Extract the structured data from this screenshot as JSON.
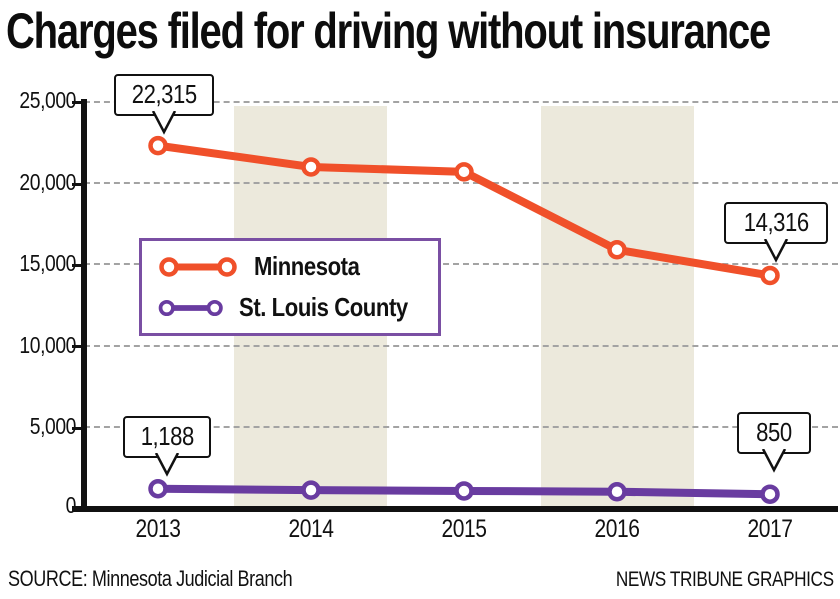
{
  "title": "Charges filed for driving without insurance",
  "source": "SOURCE: Minnesota Judicial Branch",
  "credit": "NEWS TRIBUNE GRAPHICS",
  "colors": {
    "minnesota": "#f0502a",
    "st_louis_county": "#693ca0",
    "band": "#ece9dc",
    "grid": "#a3a3a3",
    "axis": "#111111",
    "legend_border": "#7a4fa3",
    "callout_border": "#111111"
  },
  "legend": {
    "items": [
      {
        "label": "Minnesota"
      },
      {
        "label": "St. Louis County"
      }
    ]
  },
  "chart_data": {
    "type": "line",
    "title": "Charges filed for driving without insurance",
    "categories": [
      "2013",
      "2014",
      "2015",
      "2016",
      "2017"
    ],
    "series": [
      {
        "name": "Minnesota",
        "color_key": "minnesota",
        "values": [
          22315,
          21000,
          20700,
          15900,
          14316
        ]
      },
      {
        "name": "St. Louis County",
        "color_key": "st_louis_county",
        "values": [
          1188,
          1100,
          1050,
          1000,
          850
        ]
      }
    ],
    "y_ticks": [
      "25,000",
      "20,000",
      "15,000",
      "10,000",
      "5,000",
      "0"
    ],
    "y_tick_values": [
      25000,
      20000,
      15000,
      10000,
      5000,
      0
    ],
    "ylim": [
      0,
      25000
    ],
    "xlabel": "",
    "ylabel": "",
    "grid": "horizontal-dashed",
    "legend_position": "inside-left",
    "shaded_year_bands": [
      "2014",
      "2016"
    ],
    "marker": "open-circle",
    "callouts": [
      {
        "series": "Minnesota",
        "year": "2013",
        "label": "22,315"
      },
      {
        "series": "Minnesota",
        "year": "2017",
        "label": "14,316"
      },
      {
        "series": "St. Louis County",
        "year": "2013",
        "label": "1,188"
      },
      {
        "series": "St. Louis County",
        "year": "2017",
        "label": "850"
      }
    ]
  }
}
